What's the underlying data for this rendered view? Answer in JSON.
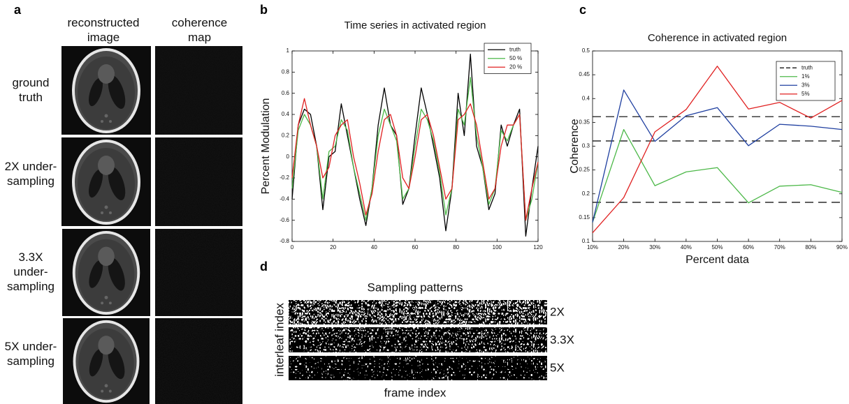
{
  "panel_labels": [
    "a",
    "b",
    "c",
    "d"
  ],
  "panel_a": {
    "column_labels": [
      "reconstructed image",
      "coherence map"
    ],
    "row_labels": [
      "ground truth",
      "2X under-sampling",
      "3.3X under-sampling",
      "5X under-sampling"
    ]
  },
  "chart_data": [
    {
      "type": "line",
      "title": "Time series in activated region",
      "y_label": "Percent Modulation",
      "x": [
        0,
        3,
        6,
        9,
        12,
        15,
        18,
        21,
        24,
        27,
        30,
        33,
        36,
        39,
        42,
        45,
        48,
        51,
        54,
        57,
        60,
        63,
        66,
        69,
        72,
        75,
        78,
        81,
        84,
        87,
        90,
        93,
        96,
        99,
        102,
        105,
        108,
        111,
        114,
        117,
        120
      ],
      "series": [
        {
          "name": "truth",
          "color": "#000000",
          "values": [
            -0.4,
            0.3,
            0.45,
            0.4,
            0.1,
            -0.5,
            0.0,
            0.05,
            0.5,
            0.2,
            -0.1,
            -0.4,
            -0.65,
            -0.3,
            0.3,
            0.65,
            0.3,
            0.2,
            -0.45,
            -0.3,
            0.2,
            0.65,
            0.4,
            0.1,
            -0.2,
            -0.7,
            -0.3,
            0.6,
            0.2,
            0.97,
            0.1,
            -0.1,
            -0.5,
            -0.35,
            0.3,
            0.1,
            0.3,
            0.45,
            -0.75,
            -0.3,
            0.1
          ]
        },
        {
          "name": "50 %",
          "color": "#4cb848",
          "values": [
            -0.3,
            0.25,
            0.4,
            0.3,
            0.1,
            -0.4,
            0.05,
            0.1,
            0.35,
            0.25,
            -0.1,
            -0.35,
            -0.6,
            -0.3,
            0.2,
            0.45,
            0.3,
            0.15,
            -0.4,
            -0.3,
            0.1,
            0.45,
            0.35,
            0.15,
            -0.15,
            -0.55,
            -0.3,
            0.45,
            0.3,
            0.75,
            0.2,
            -0.1,
            -0.45,
            -0.3,
            0.25,
            0.15,
            0.3,
            0.4,
            -0.6,
            -0.4,
            -0.05
          ]
        },
        {
          "name": "20 %",
          "color": "#e02020",
          "values": [
            -0.2,
            0.3,
            0.55,
            0.3,
            0.1,
            -0.2,
            -0.1,
            0.2,
            0.3,
            0.35,
            0.0,
            -0.25,
            -0.55,
            -0.35,
            0.05,
            0.35,
            0.4,
            0.2,
            -0.2,
            -0.3,
            0.0,
            0.35,
            0.4,
            0.2,
            -0.1,
            -0.4,
            -0.3,
            0.35,
            0.4,
            0.5,
            0.3,
            -0.05,
            -0.4,
            -0.3,
            0.1,
            0.3,
            0.3,
            0.4,
            -0.6,
            -0.3,
            -0.05
          ]
        }
      ],
      "xlim": [
        0,
        120
      ],
      "xticks": [
        0,
        20,
        40,
        60,
        80,
        100,
        120
      ],
      "ylim": [
        -0.8,
        1
      ],
      "yticks": [
        -0.8,
        -0.6,
        -0.4,
        -0.2,
        0,
        0.2,
        0.4,
        0.6,
        0.8,
        1
      ],
      "legend": "upper right"
    },
    {
      "type": "line",
      "title": "Coherence in activated region",
      "x_label": "Percent data",
      "y_label": "Coherence",
      "categories": [
        "10%",
        "20%",
        "30%",
        "40%",
        "50%",
        "60%",
        "70%",
        "80%",
        "90%"
      ],
      "reference_lines": {
        "name": "truth",
        "color": "#000000",
        "values": [
          0.362,
          0.311,
          0.182
        ]
      },
      "series": [
        {
          "name": "1%",
          "color": "#4cb848",
          "values": [
            0.14,
            0.335,
            0.217,
            0.246,
            0.255,
            0.181,
            0.216,
            0.219,
            0.203
          ]
        },
        {
          "name": "3%",
          "color": "#1f3fa0",
          "values": [
            0.14,
            0.418,
            0.31,
            0.364,
            0.381,
            0.301,
            0.346,
            0.342,
            0.335
          ]
        },
        {
          "name": "5%",
          "color": "#e02020",
          "values": [
            0.118,
            0.192,
            0.33,
            0.377,
            0.468,
            0.378,
            0.392,
            0.359,
            0.396
          ]
        }
      ],
      "ylim": [
        0.1,
        0.5
      ],
      "yticks": [
        0.1,
        0.15,
        0.2,
        0.25,
        0.3,
        0.35,
        0.4,
        0.45,
        0.5
      ],
      "legend": "upper right"
    }
  ],
  "panel_d": {
    "title": "Sampling patterns",
    "y_label": "interleaf index",
    "x_label": "frame index",
    "pattern_labels": [
      "2X",
      "3.3X",
      "5X"
    ]
  }
}
